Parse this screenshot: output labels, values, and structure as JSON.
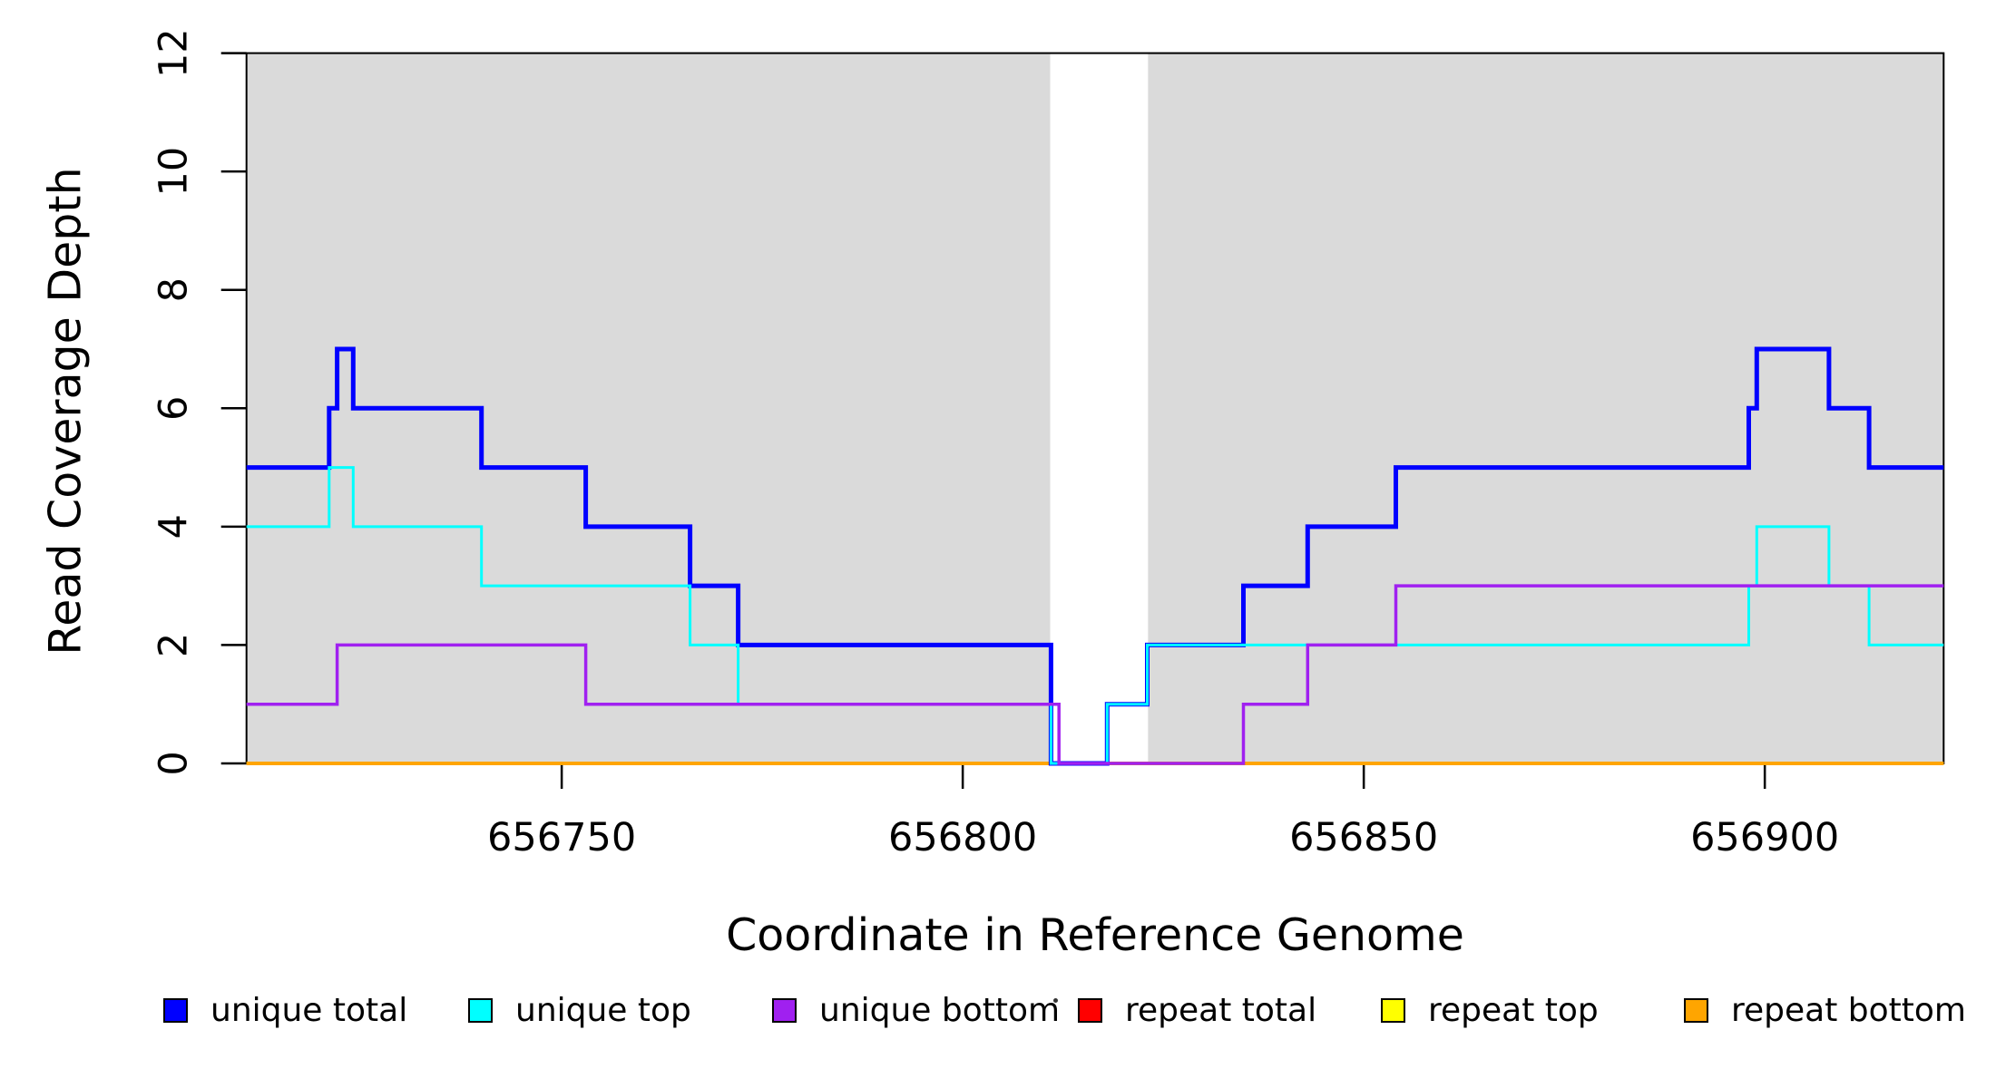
{
  "chart_data": {
    "type": "line",
    "step": true,
    "title": "",
    "xlabel": "Coordinate in Reference Genome",
    "ylabel": "Read Coverage Depth",
    "xlim": [
      656710.7,
      656922.3
    ],
    "ylim": [
      0,
      12
    ],
    "x_tick_values": [
      656750,
      656800,
      656850,
      656900
    ],
    "x_tick_labels": [
      "656750",
      "656800",
      "656850",
      "656900"
    ],
    "y_tick_values": [
      0,
      2,
      4,
      6,
      8,
      10,
      12
    ],
    "y_tick_labels": [
      "0",
      "2",
      "4",
      "6",
      "8",
      "10",
      "12"
    ],
    "grid": false,
    "legend_position": "bottom",
    "axis_color": "#000000",
    "shade_color": "#DADADA",
    "shaded_regions": [
      [
        656710.7,
        656810.9
      ],
      [
        656823.1,
        656922.3
      ]
    ],
    "series": [
      {
        "name": "unique total",
        "color": "#0000FF",
        "line_width": 5,
        "z": 4,
        "steps": [
          [
            656710.7,
            5
          ],
          [
            656721,
            6
          ],
          [
            656722,
            7
          ],
          [
            656724,
            6
          ],
          [
            656740,
            5
          ],
          [
            656753,
            4
          ],
          [
            656766,
            3
          ],
          [
            656772,
            2
          ],
          [
            656811,
            0
          ],
          [
            656818,
            1
          ],
          [
            656823,
            2
          ],
          [
            656835,
            3
          ],
          [
            656843,
            4
          ],
          [
            656854,
            5
          ],
          [
            656898,
            6
          ],
          [
            656899,
            7
          ],
          [
            656908,
            6
          ],
          [
            656913,
            5
          ]
        ]
      },
      {
        "name": "unique top",
        "color": "#00FFFF",
        "line_width": 3,
        "z": 5,
        "steps": [
          [
            656710.7,
            4
          ],
          [
            656721,
            5
          ],
          [
            656724,
            4
          ],
          [
            656740,
            3
          ],
          [
            656766,
            2
          ],
          [
            656772,
            1
          ],
          [
            656811,
            0
          ],
          [
            656818,
            1
          ],
          [
            656823,
            2
          ],
          [
            656898,
            3
          ],
          [
            656899,
            4
          ],
          [
            656908,
            3
          ],
          [
            656913,
            2
          ]
        ]
      },
      {
        "name": "unique bottom",
        "color": "#A020F0",
        "line_width": 3.5,
        "z": 6,
        "steps": [
          [
            656710.7,
            1
          ],
          [
            656722,
            2
          ],
          [
            656753,
            1
          ],
          [
            656812,
            0
          ],
          [
            656835,
            1
          ],
          [
            656843,
            2
          ],
          [
            656854,
            3
          ]
        ]
      },
      {
        "name": "repeat total",
        "color": "#FF0000",
        "line_width": 3,
        "z": 1,
        "steps": [
          [
            656710.7,
            0
          ]
        ]
      },
      {
        "name": "repeat top",
        "color": "#FFFF00",
        "line_width": 3,
        "z": 2,
        "steps": [
          [
            656710.7,
            0
          ]
        ]
      },
      {
        "name": "repeat bottom",
        "color": "#FFA500",
        "line_width": 4,
        "z": 3,
        "steps": [
          [
            656710.7,
            0
          ]
        ]
      }
    ]
  },
  "legend": {
    "items": [
      {
        "label": "unique total",
        "color": "#0000FF"
      },
      {
        "label": "unique top",
        "color": "#00FFFF"
      },
      {
        "label": "unique bottom",
        "color": "#A020F0"
      },
      {
        "label": "repeat total",
        "color": "#FF0000"
      },
      {
        "label": "repeat top",
        "color": "#FFFF00"
      },
      {
        "label": "repeat bottom",
        "color": "#FFA500"
      }
    ]
  }
}
